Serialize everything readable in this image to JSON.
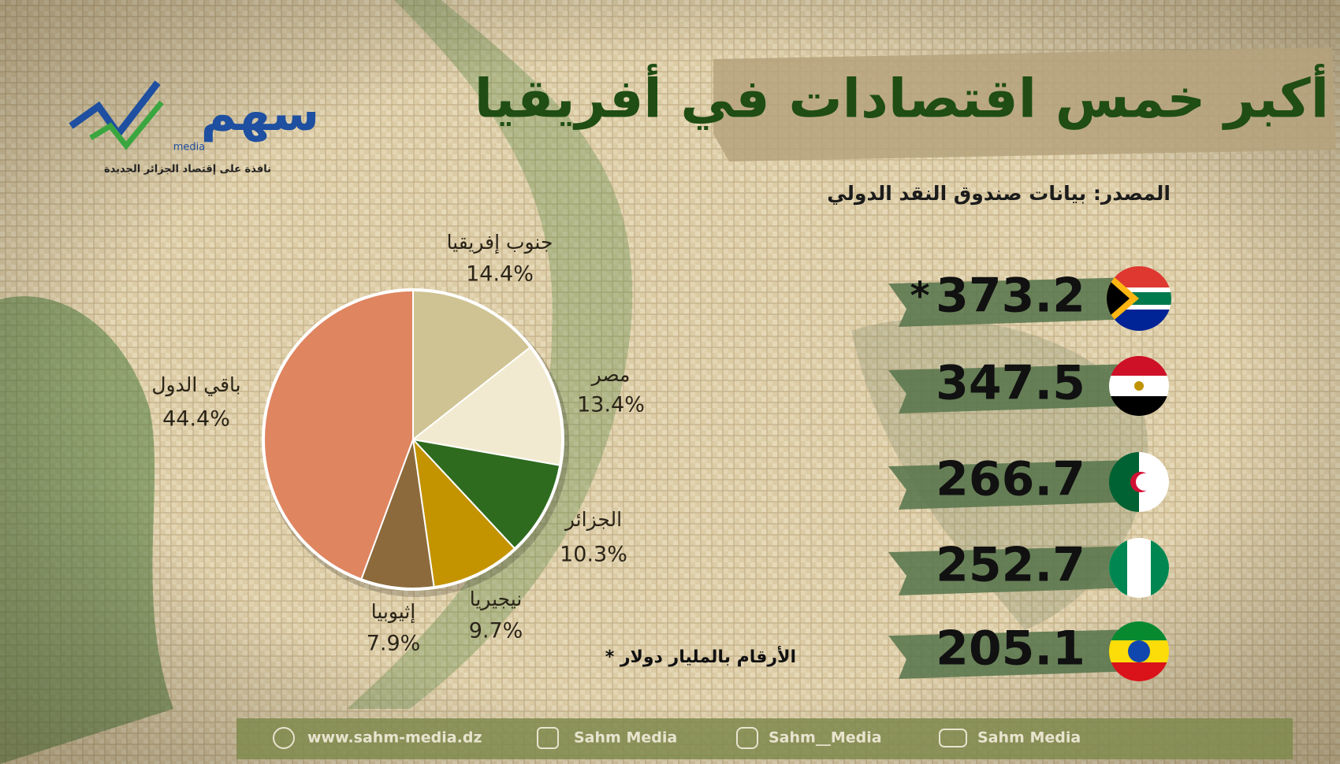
{
  "header": {
    "title": "أكبر خمس اقتصادات في أفريقيا",
    "source": "المصدر: بيانات صندوق النقد الدولي",
    "logo": "سهم",
    "logo_sub": "media",
    "tagline": "نافذة على إقتصاد الجزائر الجديدة"
  },
  "chart_data": {
    "type": "pie",
    "categories": [
      "جنوب إفريقيا",
      "مصر",
      "الجزائر",
      "نيجيريا",
      "إثيوبيا",
      "باقي الدول"
    ],
    "values": [
      14.4,
      13.4,
      10.3,
      9.7,
      7.9,
      44.4
    ],
    "value_labels": [
      "14.4%",
      "13.4%",
      "10.3%",
      "9.7%",
      "7.9%",
      "44.4%"
    ],
    "colors": [
      "#cfc393",
      "#f2ead0",
      "#2f6b1f",
      "#c49300",
      "#8c6a3c",
      "#df8560"
    ]
  },
  "rankings": {
    "values": [
      373.2,
      347.5,
      266.7,
      252.7,
      205.1
    ],
    "marker": "*",
    "note": "* الأرقام بالمليار دولار"
  },
  "footer": {
    "website": "www.sahm-media.dz",
    "facebook": "Sahm Media",
    "instagram": "Sahm__Media",
    "youtube": "Sahm Media"
  }
}
